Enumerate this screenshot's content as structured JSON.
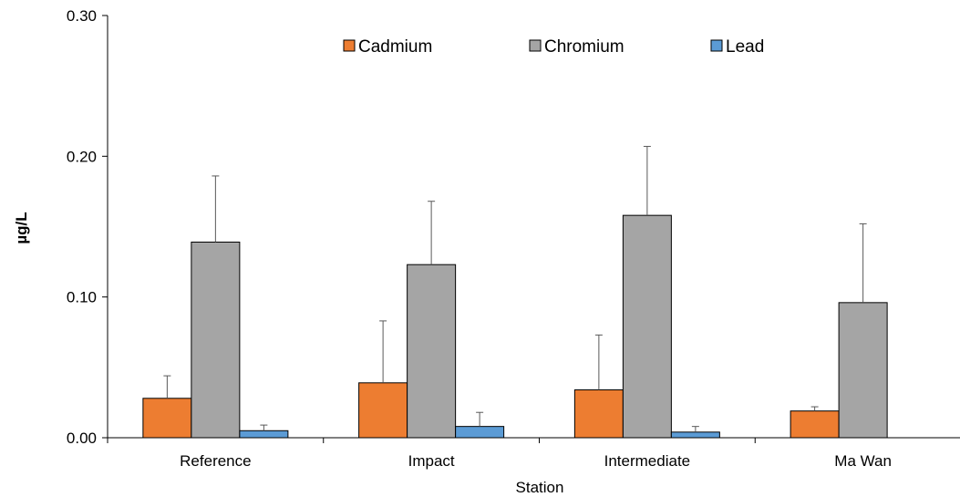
{
  "chart_data": {
    "type": "bar",
    "title": "",
    "xlabel": "Station",
    "ylabel": "µg/L",
    "ylim": [
      0,
      0.3
    ],
    "yticks": [
      "0.00",
      "0.10",
      "0.20",
      "0.30"
    ],
    "categories": [
      "Reference",
      "Impact",
      "Intermediate",
      "Ma Wan"
    ],
    "legend_position": "top-center",
    "grid": false,
    "error_bars": "upper",
    "series": [
      {
        "name": "Cadmium",
        "color": "#ED7D31",
        "values": [
          0.028,
          0.039,
          0.034,
          0.019
        ],
        "errors": [
          0.016,
          0.044,
          0.039,
          0.003
        ]
      },
      {
        "name": "Chromium",
        "color": "#A5A5A5",
        "values": [
          0.139,
          0.123,
          0.158,
          0.096
        ],
        "errors": [
          0.047,
          0.045,
          0.049,
          0.056
        ]
      },
      {
        "name": "Lead",
        "color": "#5B9BD5",
        "values": [
          0.005,
          0.008,
          0.004,
          0.0
        ],
        "errors": [
          0.004,
          0.01,
          0.004,
          0.0
        ]
      }
    ]
  }
}
